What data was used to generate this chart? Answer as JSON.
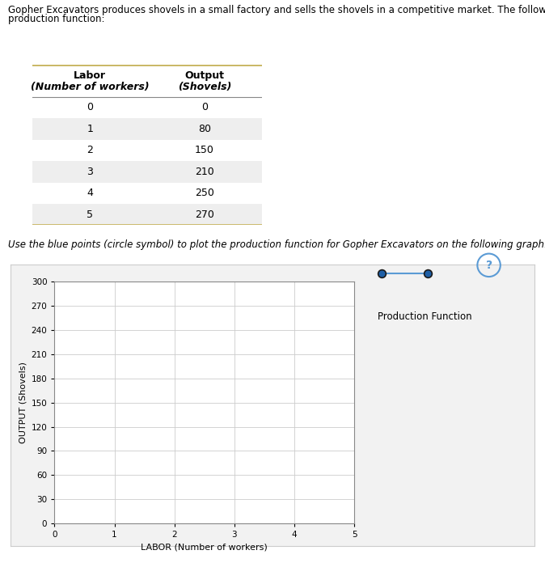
{
  "desc_line1": "Gopher Excavators produces shovels in a small factory and sells the shovels in a competitive market. The following table shows the company's",
  "desc_line2": "production function:",
  "instruction": "Use the blue points (circle symbol) to plot the production function for Gopher Excavators on the following graph.",
  "table": {
    "col1_header_line1": "Labor",
    "col1_header_line2": "(Number of workers)",
    "col2_header_line1": "Output",
    "col2_header_line2": "(Shovels)",
    "rows": [
      [
        0,
        0
      ],
      [
        1,
        80
      ],
      [
        2,
        150
      ],
      [
        3,
        210
      ],
      [
        4,
        250
      ],
      [
        5,
        270
      ]
    ],
    "border_color": "#c8b560",
    "row_colors": [
      "#ffffff",
      "#eeeeee"
    ],
    "header_bg": "#ffffff"
  },
  "graph": {
    "labor": [
      0,
      1,
      2,
      3,
      4,
      5
    ],
    "output": [
      0,
      80,
      150,
      210,
      250,
      270
    ],
    "xlim": [
      0,
      5
    ],
    "ylim": [
      0,
      300
    ],
    "xticks": [
      0,
      1,
      2,
      3,
      4,
      5
    ],
    "yticks": [
      0,
      30,
      60,
      90,
      120,
      150,
      180,
      210,
      240,
      270,
      300
    ],
    "xlabel": "LABOR (Number of workers)",
    "ylabel": "OUTPUT (Shovels)",
    "point_color": "#1f5fa6",
    "point_edge_color": "#1a1a1a",
    "line_color": "#5b9bd5",
    "legend_label": "Production Function",
    "grid_color": "#cccccc",
    "plot_bg": "#ffffff",
    "panel_bg": "#f2f2f2",
    "panel_border": "#cccccc"
  },
  "question_mark_color": "#5b9bd5",
  "font_size_body": 8.5,
  "font_size_instruction": 8.5,
  "font_size_axis_label": 8,
  "font_size_tick": 7.5,
  "font_size_legend": 8.5,
  "font_size_table_header": 9,
  "font_size_table_row": 9
}
